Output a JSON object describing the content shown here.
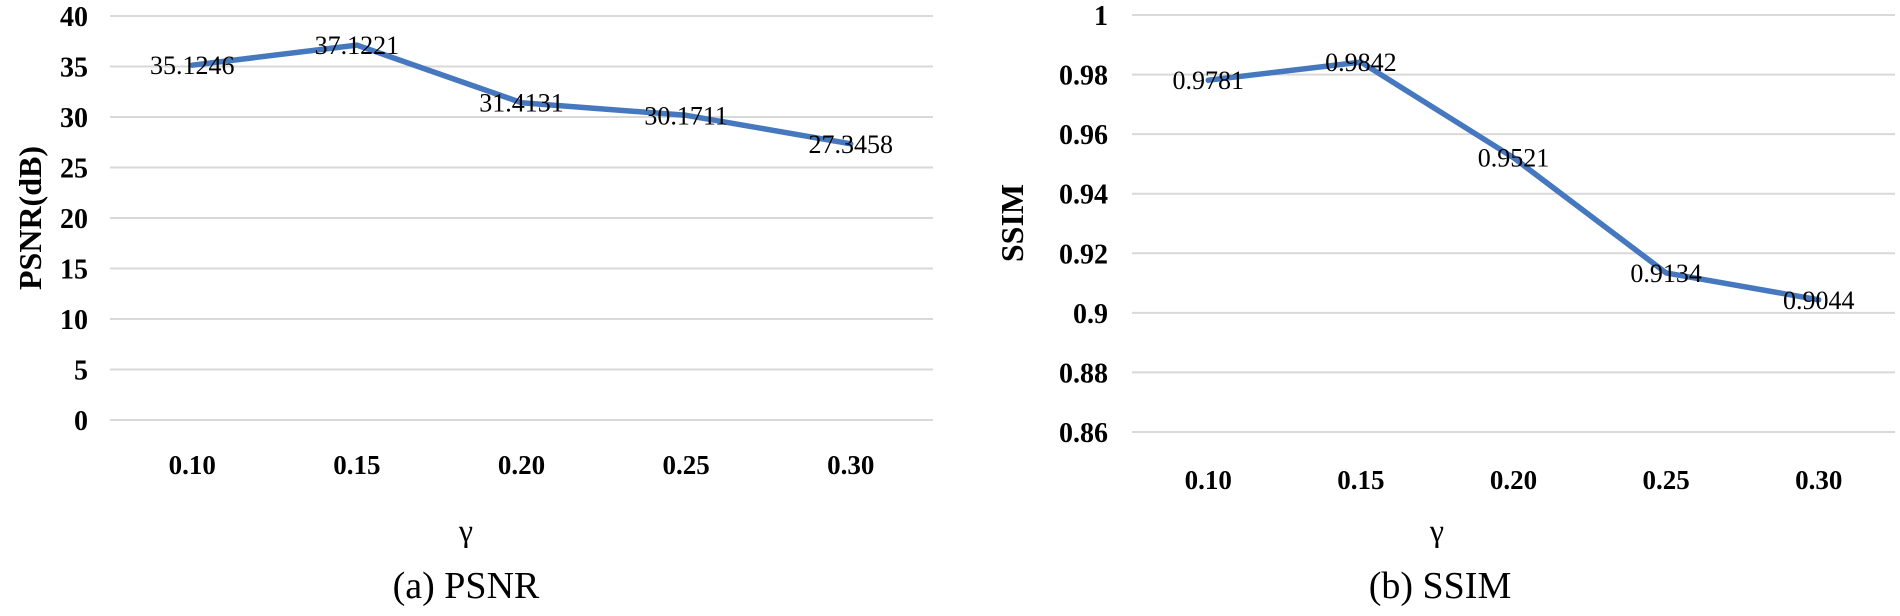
{
  "figure": {
    "background_color": "#ffffff",
    "gridline_color": "#d9d9d9",
    "text_color": "#000000"
  },
  "chart_data": [
    {
      "id": "psnr",
      "type": "line",
      "caption": "(a) PSNR",
      "xlabel": "γ",
      "ylabel": "PSNR(dB)",
      "categories": [
        "0.10",
        "0.15",
        "0.20",
        "0.25",
        "0.30"
      ],
      "values": [
        35.1246,
        37.1221,
        31.4131,
        30.1711,
        27.3458
      ],
      "point_labels": [
        "35.1246",
        "37.1221",
        "31.4131",
        "30.1711",
        "27.3458"
      ],
      "ylim": [
        0,
        40
      ],
      "ytick_values": [
        40,
        35,
        30,
        25,
        20,
        15,
        10,
        5,
        0
      ],
      "ytick_labels": [
        "40",
        "35",
        "30",
        "25",
        "20",
        "15",
        "10",
        "5",
        "0"
      ],
      "grid": true,
      "legend": "none",
      "line_color": "#4678bf",
      "data_label_position": "center"
    },
    {
      "id": "ssim",
      "type": "line",
      "caption": "(b) SSIM",
      "xlabel": "γ",
      "ylabel": "SSIM",
      "categories": [
        "0.10",
        "0.15",
        "0.20",
        "0.25",
        "0.30"
      ],
      "values": [
        0.9781,
        0.9842,
        0.9521,
        0.9134,
        0.9044
      ],
      "point_labels": [
        "0.9781",
        "0.9842",
        "0.9521",
        "0.9134",
        "0.9044"
      ],
      "ylim": [
        0.86,
        1
      ],
      "ytick_values": [
        1,
        0.98,
        0.96,
        0.94,
        0.92,
        0.9,
        0.88,
        0.86
      ],
      "ytick_labels": [
        "1",
        "0.98",
        "0.96",
        "0.94",
        "0.92",
        "0.9",
        "0.88",
        "0.86"
      ],
      "grid": true,
      "legend": "none",
      "line_color": "#4678bf",
      "data_label_position": "center"
    }
  ]
}
